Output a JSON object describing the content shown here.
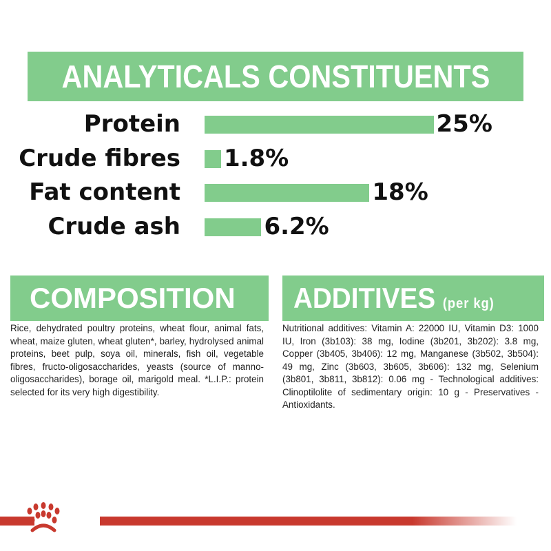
{
  "header": {
    "title": "ANALYTICALS CONSTITUENTS"
  },
  "analyticals": [
    {
      "label": "Protein",
      "value": "25%",
      "percent": 25
    },
    {
      "label": "Crude fibres",
      "value": "1.8%",
      "percent": 1.8
    },
    {
      "label": "Fat content",
      "value": "18%",
      "percent": 18
    },
    {
      "label": "Crude ash",
      "value": "6.2%",
      "percent": 6.2
    }
  ],
  "composition": {
    "title": "COMPOSITION",
    "text": "Rice, dehydrated poultry proteins, wheat flour, animal fats, wheat, maize gluten, wheat gluten*, barley, hydrolysed animal proteins, beet pulp, soya oil, minerals, fish oil, vegetable fibres, fructo-oligosaccharides, yeasts (source of manno-oligosaccharides), borage oil, marigold meal. *L.I.P.: protein selected for its very high digestibility."
  },
  "additives": {
    "title": "ADDITIVES",
    "unit": "(per kg)",
    "text": "Nutritional additives: Vitamin A: 22000 IU, Vitamin D3: 1000 IU, Iron (3b103): 38 mg, Iodine (3b201, 3b202): 3.8 mg, Copper (3b405, 3b406): 12 mg, Manganese (3b502, 3b504): 49 mg, Zinc (3b603, 3b605, 3b606): 132 mg, Selenium (3b801, 3b811, 3b812): 0.06 mg - Technological additives: Clinoptilolite of sedimentary origin: 10 g - Preservatives - Antioxidants."
  },
  "colors": {
    "accent": "#82cc8c",
    "brand_red": "#c8392e"
  },
  "logo": {
    "icon": "royal-canin-crown-icon"
  }
}
